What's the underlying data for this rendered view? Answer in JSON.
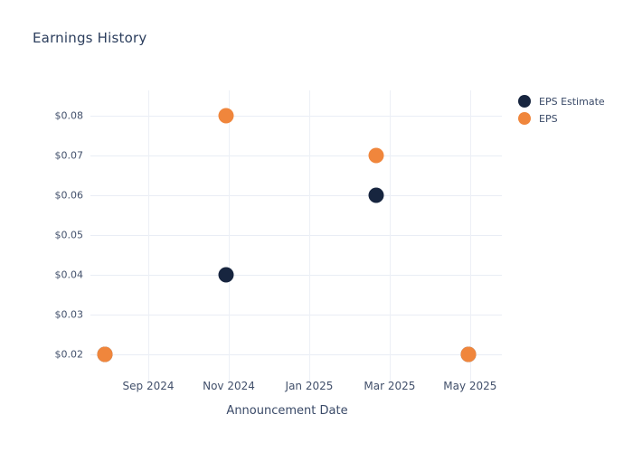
{
  "title": "Earnings History",
  "colors": {
    "eps_estimate": "#17253f",
    "eps": "#f0863c",
    "gridline": "#e9edf5",
    "title_text": "#2c3e5d",
    "tick_text": "#42506b",
    "background": "#ffffff"
  },
  "legend": {
    "items": [
      {
        "label": "EPS Estimate",
        "color": "#17253f"
      },
      {
        "label": "EPS",
        "color": "#f0863c"
      }
    ]
  },
  "chart_data": {
    "type": "scatter",
    "title": "Earnings History",
    "xlabel": "Announcement Date",
    "ylabel": "",
    "grid": true,
    "legend_position": "top-right-outside",
    "x_axis_unit": "months relative to the Sep 2024 tick (Sep 2024 = 0, one unit = one month)",
    "xlim": [
      -1.44,
      8.79
    ],
    "ylim": [
      0.0143,
      0.0864
    ],
    "x_ticks": [
      {
        "label": "Sep 2024",
        "value": 0
      },
      {
        "label": "Nov 2024",
        "value": 2
      },
      {
        "label": "Jan 2025",
        "value": 4
      },
      {
        "label": "Mar 2025",
        "value": 6
      },
      {
        "label": "May 2025",
        "value": 8
      }
    ],
    "y_ticks": [
      {
        "label": "$0.02",
        "value": 0.02
      },
      {
        "label": "$0.03",
        "value": 0.03
      },
      {
        "label": "$0.04",
        "value": 0.04
      },
      {
        "label": "$0.05",
        "value": 0.05
      },
      {
        "label": "$0.06",
        "value": 0.06
      },
      {
        "label": "$0.07",
        "value": 0.07
      },
      {
        "label": "$0.08",
        "value": 0.08
      }
    ],
    "series": [
      {
        "name": "EPS Estimate",
        "color": "#17253f",
        "marker": "circle",
        "points": [
          {
            "x": -1.08,
            "y": 0.02,
            "approx_date": "early Aug 2024",
            "note": "coincident with EPS marker, hidden beneath it"
          },
          {
            "x": 1.94,
            "y": 0.04,
            "approx_date": "late Oct 2024"
          },
          {
            "x": 5.67,
            "y": 0.06,
            "approx_date": "late Feb 2025"
          },
          {
            "x": 7.96,
            "y": 0.02,
            "approx_date": "late Apr 2025",
            "note": "coincident with EPS marker, hidden beneath it"
          }
        ]
      },
      {
        "name": "EPS",
        "color": "#f0863c",
        "marker": "circle",
        "points": [
          {
            "x": -1.08,
            "y": 0.02,
            "approx_date": "early Aug 2024"
          },
          {
            "x": 1.94,
            "y": 0.08,
            "approx_date": "late Oct 2024"
          },
          {
            "x": 5.67,
            "y": 0.07,
            "approx_date": "late Feb 2025"
          },
          {
            "x": 7.96,
            "y": 0.02,
            "approx_date": "late Apr 2025"
          }
        ]
      }
    ]
  }
}
